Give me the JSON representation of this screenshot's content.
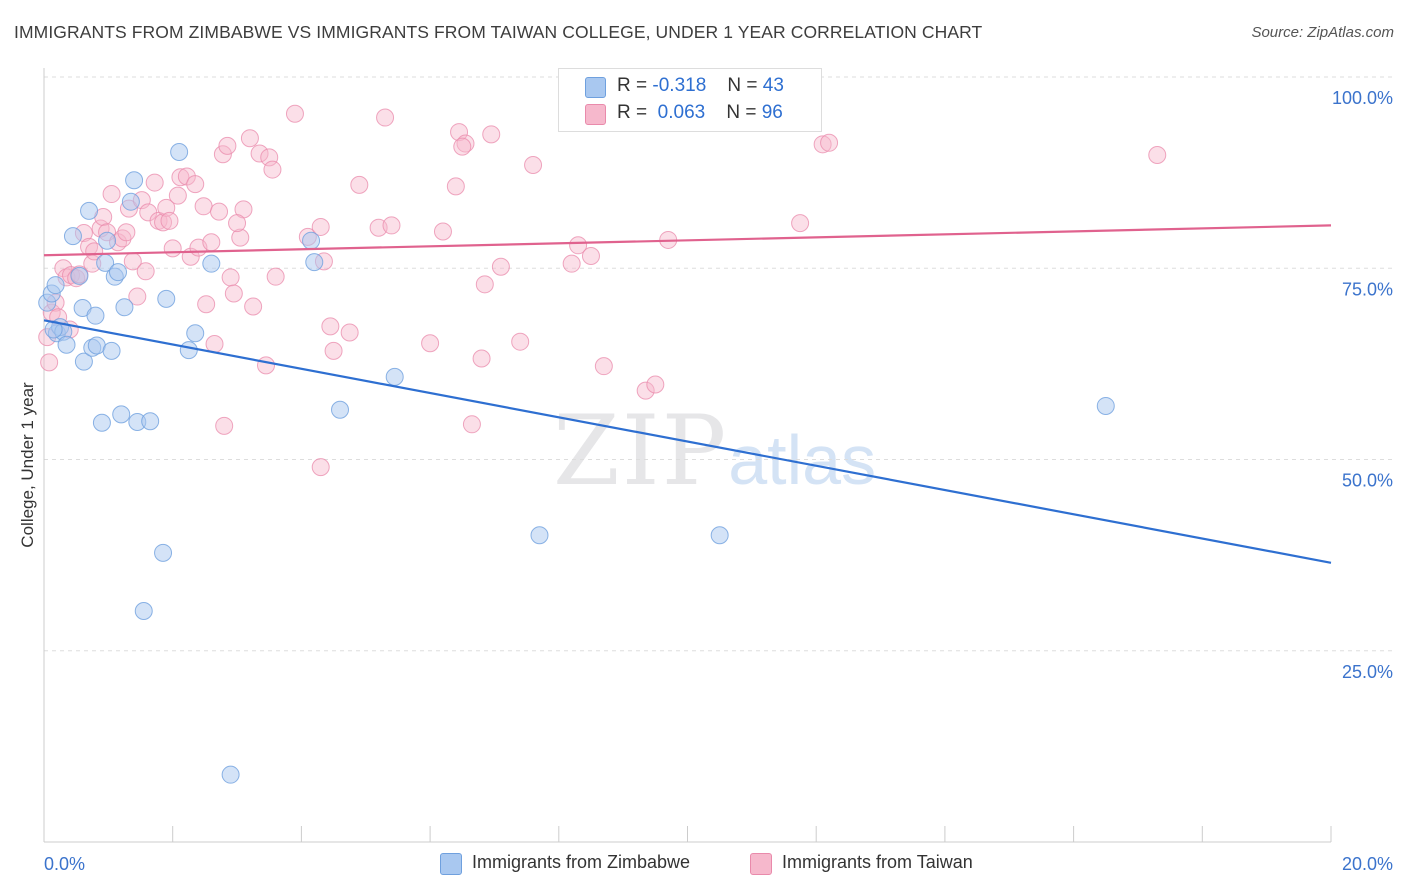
{
  "title": "IMMIGRANTS FROM ZIMBABWE VS IMMIGRANTS FROM TAIWAN COLLEGE, UNDER 1 YEAR CORRELATION CHART",
  "source": "Source: ZipAtlas.com",
  "watermark": {
    "zip": "ZIP",
    "atlas": "atlas"
  },
  "legend": {
    "rows": [
      {
        "r_label": "R =",
        "r_value": "-0.318",
        "n_label": "N =",
        "n_value": "43"
      },
      {
        "r_label": "R =",
        "r_value": "0.063",
        "n_label": "N =",
        "n_value": "96"
      }
    ]
  },
  "bottom_legend": [
    "Immigrants from Zimbabwe",
    "Immigrants from Taiwan"
  ],
  "colors": {
    "blue_fill": "#a9c8f0",
    "blue_stroke": "#6fa0de",
    "blue_line": "#2e6fd1",
    "pink_fill": "#f6b8cc",
    "pink_stroke": "#e98aab",
    "pink_line": "#e0628e",
    "axis_label": "#3b73cc",
    "grid": "#dddddd"
  },
  "chart_data": {
    "type": "scatter",
    "title": "IMMIGRANTS FROM ZIMBABWE VS IMMIGRANTS FROM TAIWAN COLLEGE, UNDER 1 YEAR CORRELATION CHART",
    "xlabel": "",
    "ylabel": "College, Under 1 year",
    "xlim": [
      0,
      20
    ],
    "ylim": [
      0,
      100
    ],
    "x_tick_labels": [
      "0.0%",
      "20.0%"
    ],
    "y_tick_labels": [
      "100.0%",
      "75.0%",
      "50.0%",
      "25.0%"
    ],
    "y_ticks": [
      100,
      75,
      50,
      25
    ],
    "series": [
      {
        "name": "Immigrants from Zimbabwe",
        "r": -0.318,
        "n": 43,
        "trend": {
          "x": [
            0,
            20
          ],
          "y": [
            68.2,
            36.5
          ]
        },
        "points": [
          [
            0.05,
            70.5
          ],
          [
            0.12,
            71.7
          ],
          [
            0.18,
            72.8
          ],
          [
            0.2,
            66.5
          ],
          [
            0.25,
            67.3
          ],
          [
            0.3,
            66.7
          ],
          [
            0.35,
            65.0
          ],
          [
            0.45,
            79.2
          ],
          [
            0.6,
            69.8
          ],
          [
            0.62,
            62.8
          ],
          [
            0.7,
            82.5
          ],
          [
            0.75,
            64.6
          ],
          [
            0.8,
            68.8
          ],
          [
            0.82,
            64.9
          ],
          [
            0.9,
            54.8
          ],
          [
            0.95,
            75.7
          ],
          [
            0.98,
            78.6
          ],
          [
            1.05,
            64.2
          ],
          [
            1.1,
            73.9
          ],
          [
            1.15,
            74.5
          ],
          [
            1.2,
            55.9
          ],
          [
            1.25,
            69.9
          ],
          [
            1.35,
            83.7
          ],
          [
            1.4,
            86.5
          ],
          [
            1.45,
            54.9
          ],
          [
            1.65,
            55.0
          ],
          [
            1.85,
            37.8
          ],
          [
            1.9,
            71.0
          ],
          [
            1.55,
            30.2
          ],
          [
            2.1,
            90.2
          ],
          [
            2.25,
            64.3
          ],
          [
            2.35,
            66.5
          ],
          [
            2.6,
            75.6
          ],
          [
            2.9,
            8.8
          ],
          [
            4.15,
            78.6
          ],
          [
            4.2,
            75.8
          ],
          [
            4.6,
            56.5
          ],
          [
            5.45,
            60.8
          ],
          [
            7.7,
            40.1
          ],
          [
            10.5,
            40.1
          ],
          [
            16.5,
            57.0
          ],
          [
            0.15,
            67.0
          ],
          [
            0.55,
            74.0
          ]
        ]
      },
      {
        "name": "Immigrants from Taiwan",
        "r": 0.063,
        "n": 96,
        "trend": {
          "x": [
            0,
            20
          ],
          "y": [
            76.7,
            80.6
          ]
        },
        "points": [
          [
            0.05,
            66.0
          ],
          [
            0.08,
            62.7
          ],
          [
            0.12,
            69.2
          ],
          [
            0.18,
            70.5
          ],
          [
            0.22,
            68.6
          ],
          [
            0.3,
            75.0
          ],
          [
            0.35,
            73.8
          ],
          [
            0.42,
            74.1
          ],
          [
            0.5,
            73.7
          ],
          [
            0.55,
            74.2
          ],
          [
            0.62,
            79.6
          ],
          [
            0.7,
            77.8
          ],
          [
            0.75,
            75.6
          ],
          [
            0.78,
            77.2
          ],
          [
            0.88,
            80.2
          ],
          [
            0.92,
            81.7
          ],
          [
            0.98,
            79.7
          ],
          [
            1.05,
            84.7
          ],
          [
            1.15,
            78.4
          ],
          [
            1.22,
            78.9
          ],
          [
            1.28,
            79.7
          ],
          [
            1.32,
            82.8
          ],
          [
            1.38,
            75.9
          ],
          [
            1.45,
            71.3
          ],
          [
            1.52,
            83.9
          ],
          [
            1.58,
            74.6
          ],
          [
            1.62,
            82.3
          ],
          [
            1.72,
            86.2
          ],
          [
            1.78,
            81.2
          ],
          [
            1.85,
            81.0
          ],
          [
            1.9,
            82.9
          ],
          [
            1.95,
            81.2
          ],
          [
            2.0,
            77.6
          ],
          [
            2.08,
            84.5
          ],
          [
            2.12,
            86.9
          ],
          [
            2.22,
            87.0
          ],
          [
            2.28,
            76.5
          ],
          [
            2.35,
            86.0
          ],
          [
            2.4,
            77.7
          ],
          [
            2.48,
            83.1
          ],
          [
            2.52,
            70.3
          ],
          [
            2.6,
            78.4
          ],
          [
            2.65,
            65.1
          ],
          [
            2.72,
            82.4
          ],
          [
            2.78,
            89.9
          ],
          [
            2.85,
            91.0
          ],
          [
            2.9,
            73.8
          ],
          [
            2.95,
            71.7
          ],
          [
            3.05,
            79.0
          ],
          [
            3.1,
            82.7
          ],
          [
            3.2,
            92.0
          ],
          [
            3.25,
            70.0
          ],
          [
            3.35,
            90.0
          ],
          [
            3.45,
            62.3
          ],
          [
            3.5,
            89.5
          ],
          [
            3.55,
            87.9
          ],
          [
            3.6,
            73.9
          ],
          [
            3.9,
            95.2
          ],
          [
            4.1,
            79.1
          ],
          [
            4.3,
            80.4
          ],
          [
            4.35,
            75.9
          ],
          [
            4.45,
            67.4
          ],
          [
            4.5,
            64.2
          ],
          [
            4.75,
            66.6
          ],
          [
            4.9,
            85.9
          ],
          [
            5.2,
            80.3
          ],
          [
            5.3,
            94.7
          ],
          [
            5.4,
            80.6
          ],
          [
            6.0,
            65.2
          ],
          [
            6.2,
            79.8
          ],
          [
            6.4,
            85.7
          ],
          [
            6.45,
            92.8
          ],
          [
            6.55,
            91.3
          ],
          [
            6.65,
            54.6
          ],
          [
            6.8,
            63.2
          ],
          [
            6.85,
            72.9
          ],
          [
            6.95,
            92.5
          ],
          [
            7.1,
            75.2
          ],
          [
            7.4,
            65.4
          ],
          [
            7.6,
            88.5
          ],
          [
            8.2,
            75.6
          ],
          [
            8.3,
            78.0
          ],
          [
            8.5,
            76.6
          ],
          [
            8.7,
            62.2
          ],
          [
            9.35,
            59.0
          ],
          [
            9.5,
            59.8
          ],
          [
            9.7,
            78.7
          ],
          [
            11.75,
            80.9
          ],
          [
            12.1,
            91.2
          ],
          [
            12.2,
            91.4
          ],
          [
            17.3,
            89.8
          ],
          [
            2.8,
            54.4
          ],
          [
            4.3,
            49.0
          ],
          [
            0.4,
            67.0
          ],
          [
            3.0,
            80.9
          ],
          [
            6.5,
            90.9
          ]
        ]
      }
    ]
  }
}
